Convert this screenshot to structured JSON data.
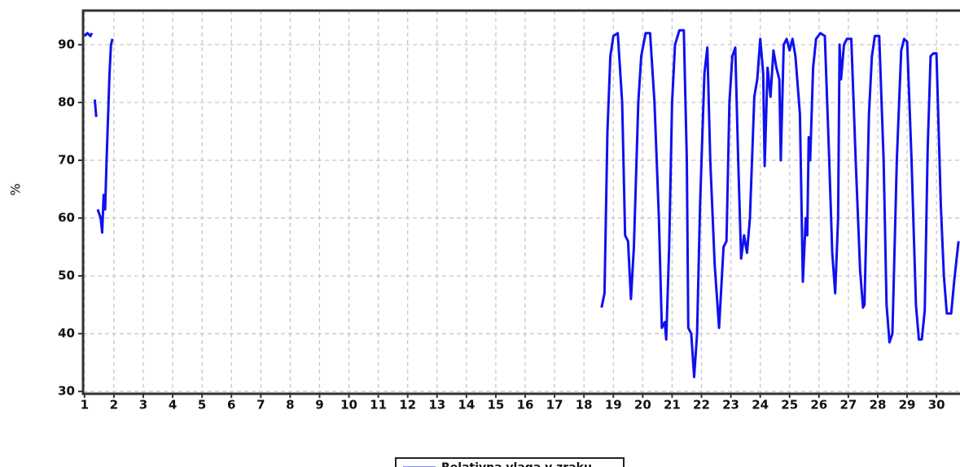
{
  "chart_data": {
    "type": "line",
    "y_label": "%",
    "xlim": [
      0.95,
      30.8
    ],
    "ylim": [
      29.6,
      95.9
    ],
    "xticks": [
      1,
      2,
      3,
      4,
      5,
      6,
      7,
      8,
      9,
      10,
      11,
      12,
      13,
      14,
      15,
      16,
      17,
      18,
      19,
      20,
      21,
      22,
      23,
      24,
      25,
      26,
      27,
      28,
      29,
      30
    ],
    "yticks": [
      30,
      40,
      50,
      60,
      70,
      80,
      90
    ],
    "grid": true,
    "series": [
      {
        "name": "Relativna vlaga v zraku",
        "color": "#1010f0",
        "x": [
          1.0,
          1.1,
          1.2,
          1.25,
          1.3,
          1.35,
          1.4,
          1.42,
          1.45,
          1.55,
          1.6,
          1.65,
          1.7,
          1.75,
          1.85,
          1.9,
          1.95,
          10,
          18.6,
          18.7,
          18.8,
          18.9,
          19.0,
          19.15,
          19.3,
          19.4,
          19.5,
          19.6,
          19.7,
          19.85,
          19.95,
          20.1,
          20.25,
          20.4,
          20.55,
          20.65,
          20.75,
          20.8,
          20.9,
          21.0,
          21.1,
          21.25,
          21.4,
          21.5,
          21.55,
          21.65,
          21.75,
          21.85,
          21.95,
          22.1,
          22.2,
          22.3,
          22.45,
          22.6,
          22.75,
          22.85,
          22.95,
          23.05,
          23.15,
          23.25,
          23.35,
          23.45,
          23.55,
          23.65,
          23.8,
          23.9,
          24.0,
          24.1,
          24.15,
          24.25,
          24.35,
          24.45,
          24.55,
          24.65,
          24.7,
          24.8,
          24.9,
          25.0,
          25.1,
          25.2,
          25.35,
          25.45,
          25.55,
          25.6,
          25.65,
          25.7,
          25.8,
          25.9,
          26.05,
          26.2,
          26.35,
          26.45,
          26.55,
          26.65,
          26.7,
          26.75,
          26.85,
          26.95,
          27.1,
          27.25,
          27.4,
          27.5,
          27.55,
          27.7,
          27.8,
          27.9,
          28.05,
          28.2,
          28.3,
          28.4,
          28.5,
          28.65,
          28.8,
          28.9,
          29.0,
          29.15,
          29.3,
          29.4,
          29.5,
          29.6,
          29.7,
          29.8,
          29.9,
          30.0,
          30.15,
          30.25,
          30.35,
          30.5,
          30.6,
          30.75
        ],
        "values": [
          91.5,
          92,
          91.5,
          92,
          null,
          80.5,
          77.5,
          null,
          61.5,
          60,
          57.5,
          64,
          61.5,
          70,
          85,
          90,
          91,
          null,
          44.5,
          47,
          75,
          88,
          91.5,
          92,
          80,
          57,
          56,
          46,
          55,
          80,
          88,
          92,
          92,
          80,
          60,
          41,
          42,
          39,
          55,
          80,
          90,
          92.5,
          92.5,
          70,
          41,
          40,
          32.5,
          40,
          62,
          85,
          89.5,
          70,
          52,
          41,
          55,
          56,
          80,
          88,
          89.5,
          70,
          53,
          57,
          54,
          60,
          81,
          84,
          91,
          85,
          69,
          86,
          81,
          89,
          86,
          84,
          70,
          90,
          91,
          89,
          91,
          88,
          78,
          49,
          60,
          57,
          74,
          70,
          86,
          91,
          92,
          91.5,
          70,
          54,
          47,
          60,
          90,
          84,
          90,
          91,
          91,
          70,
          51,
          44.5,
          45,
          78,
          88,
          91.5,
          91.5,
          70,
          45,
          38.5,
          40,
          70,
          89,
          91,
          90.5,
          70,
          45,
          39,
          39,
          44,
          72,
          88,
          88.5,
          88.5,
          62,
          50,
          43.5,
          43.5,
          49,
          56
        ]
      }
    ]
  }
}
